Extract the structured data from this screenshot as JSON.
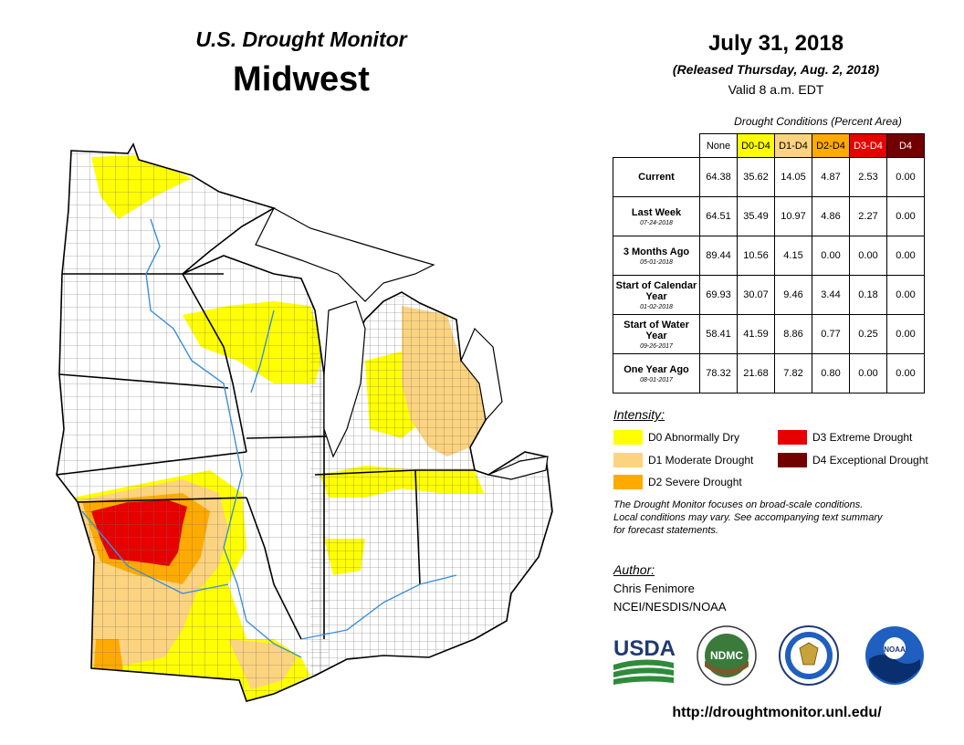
{
  "map": {
    "title_line1": "U.S. Drought Monitor",
    "title_line2": "Midwest"
  },
  "header": {
    "date": "July 31, 2018",
    "released": "(Released Thursday, Aug. 2, 2018)",
    "valid": "Valid 8 a.m. EDT"
  },
  "table": {
    "caption": "Drought Conditions (Percent Area)",
    "columns": [
      {
        "label": "None",
        "color": "#ffffff"
      },
      {
        "label": "D0-D4",
        "color": "#ffff00"
      },
      {
        "label": "D1-D4",
        "color": "#fcd37f"
      },
      {
        "label": "D2-D4",
        "color": "#ffaa00"
      },
      {
        "label": "D3-D4",
        "color": "#e60000"
      },
      {
        "label": "D4",
        "color": "#730000"
      }
    ],
    "rows": [
      {
        "label": "Current",
        "date": "",
        "values": [
          "64.38",
          "35.62",
          "14.05",
          "4.87",
          "2.53",
          "0.00"
        ]
      },
      {
        "label": "Last Week",
        "date": "07-24-2018",
        "values": [
          "64.51",
          "35.49",
          "10.97",
          "4.86",
          "2.27",
          "0.00"
        ]
      },
      {
        "label": "3 Months Ago",
        "date": "05-01-2018",
        "values": [
          "89.44",
          "10.56",
          "4.15",
          "0.00",
          "0.00",
          "0.00"
        ]
      },
      {
        "label": "Start of Calendar Year",
        "date": "01-02-2018",
        "values": [
          "69.93",
          "30.07",
          "9.46",
          "3.44",
          "0.18",
          "0.00"
        ]
      },
      {
        "label": "Start of Water Year",
        "date": "09-26-2017",
        "values": [
          "58.41",
          "41.59",
          "8.86",
          "0.77",
          "0.25",
          "0.00"
        ]
      },
      {
        "label": "One Year Ago",
        "date": "08-01-2017",
        "values": [
          "78.32",
          "21.68",
          "7.82",
          "0.80",
          "0.00",
          "0.00"
        ]
      }
    ]
  },
  "legend": {
    "title": "Intensity:",
    "items": [
      {
        "label": "D0 Abnormally Dry",
        "color": "#ffff00"
      },
      {
        "label": "D1 Moderate Drought",
        "color": "#fcd37f"
      },
      {
        "label": "D2 Severe Drought",
        "color": "#ffaa00"
      },
      {
        "label": "D3 Extreme Drought",
        "color": "#e60000"
      },
      {
        "label": "D4 Exceptional Drought",
        "color": "#730000"
      }
    ]
  },
  "note": {
    "line1": "The Drought Monitor focuses on broad-scale conditions.",
    "line2": "Local conditions may vary. See accompanying text summary",
    "line3": "for forecast statements."
  },
  "author": {
    "label": "Author:",
    "name": "Chris Fenimore",
    "org": "NCEI/NESDIS/NOAA"
  },
  "logos": {
    "usda": "USDA",
    "ndmc": "NDMC",
    "noaa": "NOAA"
  },
  "url": "http://droughtmonitor.unl.edu/"
}
